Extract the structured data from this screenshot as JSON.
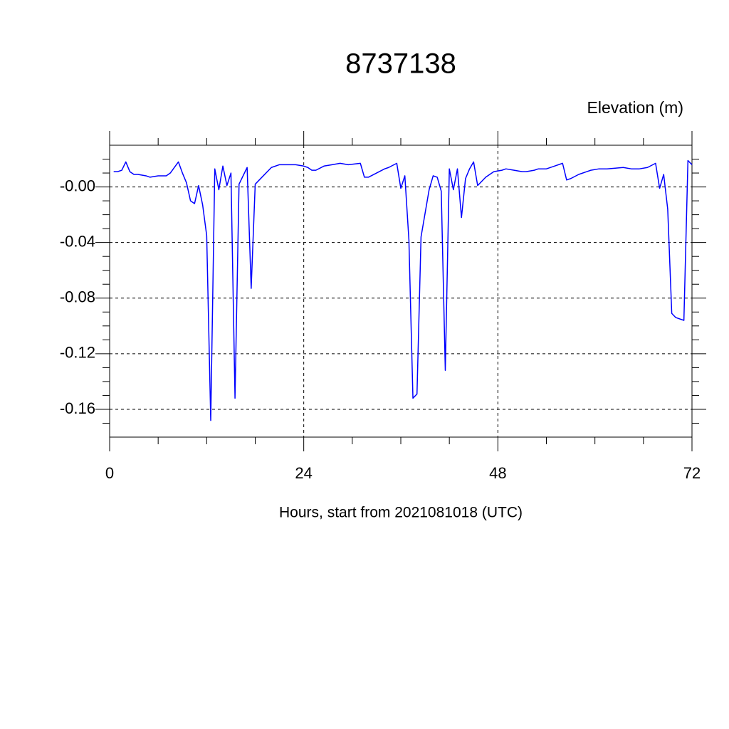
{
  "chart_data": {
    "type": "line",
    "title": "8737138",
    "ylabel": "Elevation (m)",
    "xlabel": "Hours, start from 2021081018 (UTC)",
    "xlim": [
      0,
      72
    ],
    "xticks": [
      0,
      24,
      48,
      72
    ],
    "xminorticks": [
      6,
      12,
      18,
      30,
      36,
      42,
      54,
      60,
      66
    ],
    "ylim": [
      -0.18,
      0.03
    ],
    "yticks": [
      {
        "value": 0,
        "label": "-0.00"
      },
      -0.04,
      -0.08,
      -0.12,
      -0.16
    ],
    "yminorticks": [
      0.02,
      0.01,
      -0.01,
      -0.02,
      -0.03,
      -0.05,
      -0.06,
      -0.07,
      -0.09,
      -0.1,
      -0.11,
      -0.13,
      -0.14,
      -0.15,
      -0.17
    ],
    "grid": true,
    "series": [
      {
        "color": "#0000ff",
        "x": [
          0.5,
          1,
          1.5,
          2,
          2.5,
          3,
          3.5,
          4.5,
          5,
          6,
          7,
          7.5,
          8.5,
          9,
          9.5,
          10,
          10.5,
          11,
          11.5,
          12,
          12.5,
          13,
          13.5,
          14,
          14.5,
          15,
          15.5,
          16,
          17,
          17.5,
          18,
          19,
          20,
          21,
          22,
          23,
          24,
          24.5,
          25,
          25.5,
          26.5,
          27.5,
          28.5,
          29.5,
          31,
          31.5,
          32,
          33,
          34,
          34.5,
          35.5,
          36,
          36.5,
          37,
          37.5,
          38,
          38.5,
          39.5,
          40,
          40.5,
          41,
          41.5,
          42,
          42.5,
          43,
          43.5,
          44,
          44.5,
          45,
          45.5,
          46.5,
          47.5,
          48.5,
          49,
          50,
          51,
          51.5,
          52.5,
          53,
          54,
          55,
          56,
          56.5,
          57,
          58,
          59,
          59.5,
          60.5,
          61.5,
          63.5,
          64.5,
          65.5,
          66.5,
          67.5,
          68,
          68.5,
          69,
          69.5,
          70,
          71,
          71.5,
          72
        ],
        "values": [
          0.011,
          0.011,
          0.012,
          0.018,
          0.011,
          0.009,
          0.009,
          0.008,
          0.007,
          0.008,
          0.008,
          0.01,
          0.018,
          0.01,
          0.003,
          -0.01,
          -0.012,
          0.001,
          -0.013,
          -0.035,
          -0.168,
          0.013,
          -0.002,
          0.015,
          0.001,
          0.01,
          -0.152,
          0.002,
          0.014,
          -0.073,
          0.002,
          0.008,
          0.014,
          0.016,
          0.016,
          0.016,
          0.015,
          0.014,
          0.012,
          0.012,
          0.015,
          0.016,
          0.017,
          0.016,
          0.017,
          0.007,
          0.007,
          0.01,
          0.013,
          0.014,
          0.017,
          -0.001,
          0.008,
          -0.038,
          -0.152,
          -0.149,
          -0.036,
          -0.002,
          0.008,
          0.007,
          -0.003,
          -0.132,
          0.013,
          -0.002,
          0.013,
          -0.022,
          0.006,
          0.013,
          0.018,
          0.001,
          0.007,
          0.011,
          0.012,
          0.013,
          0.012,
          0.011,
          0.011,
          0.012,
          0.013,
          0.013,
          0.015,
          0.017,
          0.005,
          0.006,
          0.009,
          0.011,
          0.012,
          0.013,
          0.013,
          0.014,
          0.013,
          0.013,
          0.014,
          0.017,
          -0.001,
          0.009,
          -0.016,
          -0.091,
          -0.094,
          -0.096,
          0.019,
          0.016
        ]
      }
    ]
  }
}
